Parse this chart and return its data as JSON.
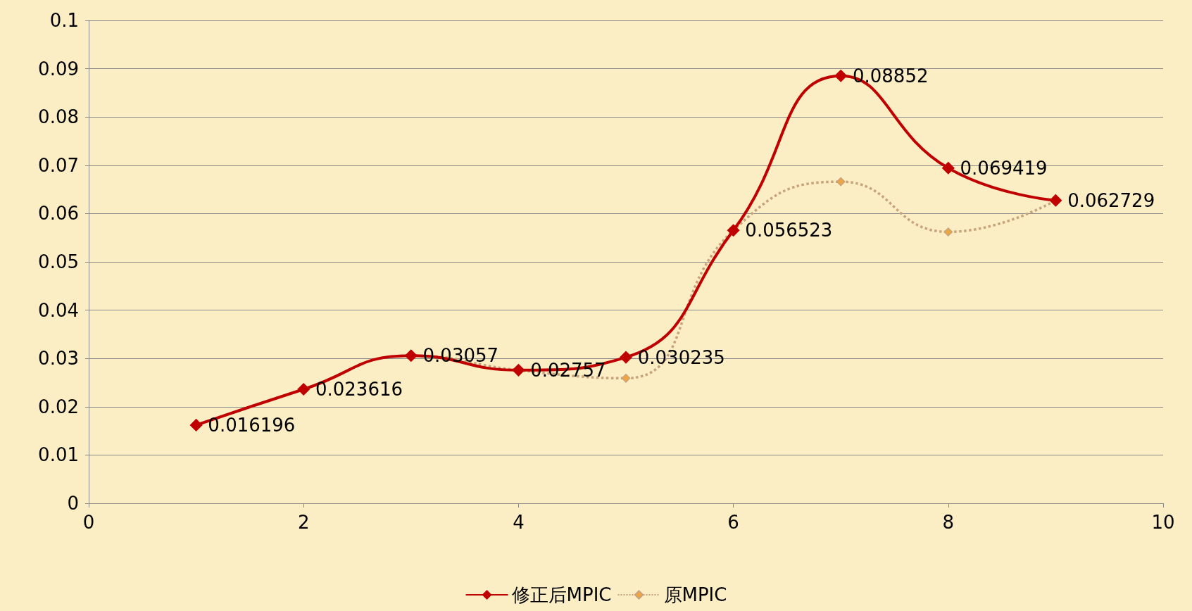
{
  "chart_data": {
    "type": "line",
    "xlim": [
      0,
      10
    ],
    "xticks": [
      0,
      2,
      4,
      6,
      8,
      10
    ],
    "ylim": [
      0,
      0.1
    ],
    "yticks": [
      0,
      0.01,
      0.02,
      0.03,
      0.04,
      0.05,
      0.06,
      0.07,
      0.08,
      0.09,
      0.1
    ],
    "grid": "y",
    "legend": "bottom",
    "marker": "diamond",
    "x": [
      1,
      2,
      3,
      4,
      5,
      6,
      7,
      8,
      9
    ],
    "series": [
      {
        "name": "修正后MPIC",
        "color": "#c00000",
        "line_style": "solid",
        "values": [
          0.016196,
          0.023616,
          0.03057,
          0.02757,
          0.030235,
          0.056523,
          0.08852,
          0.069419,
          0.062729
        ],
        "value_labels": [
          "0.016196",
          "0.023616",
          "0.03057",
          "0.02757",
          "0.030235",
          "0.056523",
          "0.08852",
          "0.069419",
          "0.062729"
        ]
      },
      {
        "name": "原MPIC",
        "color": "#c8a27a",
        "line_style": "dotted",
        "values": [
          0.016196,
          0.023616,
          0.03057,
          0.02757,
          0.0259,
          0.056523,
          0.0666,
          0.0562,
          0.062729
        ]
      }
    ]
  }
}
